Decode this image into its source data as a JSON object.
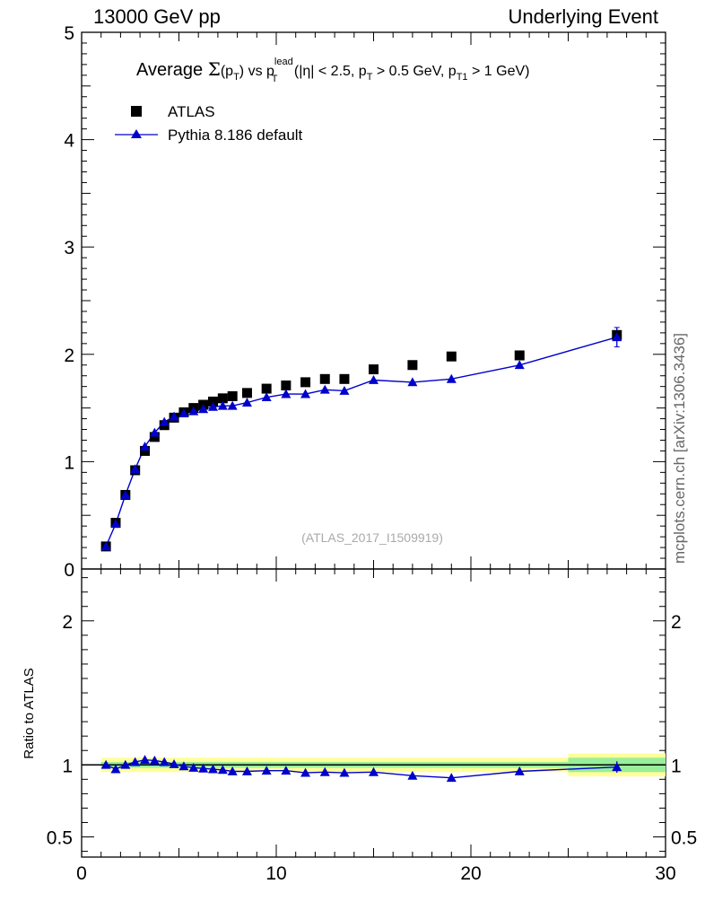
{
  "header": {
    "left": "13000 GeV pp",
    "right": "Underlying Event"
  },
  "side_label": "mcplots.cern.ch [arXiv:1306.3436]",
  "watermark": "(ATLAS_2017_I1509919)",
  "colors": {
    "data": "#000000",
    "mc": "#0000cc",
    "band_outer": "#ffff99",
    "band_inner": "#99ee99"
  },
  "chart_data": [
    {
      "type": "scatter",
      "title": "Average Σ(pT) vs pT^lead (|η| < 2.5, pT > 0.5 GeV, pT1 > 1 GeV)",
      "title_parts": {
        "a": "Average ",
        "sigma": "Σ",
        "b": "(p",
        "sub_T": "T",
        "c": ") vs p",
        "sup_lead": "lead",
        "d": " (|η| < 2.5, p",
        "e": " > 0.5 GeV, p",
        "sub_T1": "T1",
        "f": " > 1 GeV)"
      },
      "xlim": [
        0,
        30
      ],
      "ylim": [
        0,
        5
      ],
      "yticks": [
        "0",
        "1",
        "2",
        "3",
        "4",
        "5"
      ],
      "legend_position": "top-left",
      "series": [
        {
          "name": "ATLAS",
          "marker": "square",
          "x": [
            1.25,
            1.75,
            2.25,
            2.75,
            3.25,
            3.75,
            4.25,
            4.75,
            5.25,
            5.75,
            6.25,
            6.75,
            7.25,
            7.75,
            8.5,
            9.5,
            10.5,
            11.5,
            12.5,
            13.5,
            15.0,
            17.0,
            19.0,
            22.5,
            27.5
          ],
          "y": [
            0.21,
            0.43,
            0.69,
            0.92,
            1.1,
            1.23,
            1.34,
            1.41,
            1.46,
            1.5,
            1.53,
            1.56,
            1.59,
            1.61,
            1.64,
            1.68,
            1.71,
            1.74,
            1.77,
            1.77,
            1.86,
            1.9,
            1.98,
            1.99,
            2.18
          ]
        },
        {
          "name": "Pythia 8.186 default",
          "marker": "triangle",
          "x": [
            1.25,
            1.75,
            2.25,
            2.75,
            3.25,
            3.75,
            4.25,
            4.75,
            5.25,
            5.75,
            6.25,
            6.75,
            7.25,
            7.75,
            8.5,
            9.5,
            10.5,
            11.5,
            12.5,
            13.5,
            15.0,
            17.0,
            19.0,
            22.5,
            27.5
          ],
          "y": [
            0.21,
            0.42,
            0.69,
            0.93,
            1.14,
            1.27,
            1.37,
            1.42,
            1.45,
            1.47,
            1.49,
            1.51,
            1.52,
            1.52,
            1.55,
            1.6,
            1.63,
            1.63,
            1.67,
            1.66,
            1.76,
            1.74,
            1.77,
            1.9,
            2.16
          ],
          "yerr_last": 0.09
        }
      ]
    },
    {
      "type": "line",
      "ylabel": "Ratio to ATLAS",
      "xlim": [
        0,
        30
      ],
      "ylim": [
        0.36,
        2.36
      ],
      "xticks": [
        "0",
        "10",
        "20",
        "30"
      ],
      "yticks": [
        "0.5",
        "1",
        "2"
      ],
      "band_edges": [
        1,
        25,
        30
      ],
      "band_outer": [
        0.05,
        0.08
      ],
      "band_inner": [
        0.02,
        0.05
      ],
      "series": [
        {
          "name": "Pythia 8.186 default",
          "x": [
            1.25,
            1.75,
            2.25,
            2.75,
            3.25,
            3.75,
            4.25,
            4.75,
            5.25,
            5.75,
            6.25,
            6.75,
            7.25,
            7.75,
            8.5,
            9.5,
            10.5,
            11.5,
            12.5,
            13.5,
            15.0,
            17.0,
            19.0,
            22.5,
            27.5
          ],
          "y": [
            1.0,
            0.97,
            1.0,
            1.02,
            1.035,
            1.03,
            1.02,
            1.005,
            0.99,
            0.98,
            0.975,
            0.97,
            0.965,
            0.955,
            0.955,
            0.96,
            0.96,
            0.945,
            0.95,
            0.945,
            0.95,
            0.925,
            0.91,
            0.955,
            0.985
          ]
        }
      ]
    }
  ]
}
